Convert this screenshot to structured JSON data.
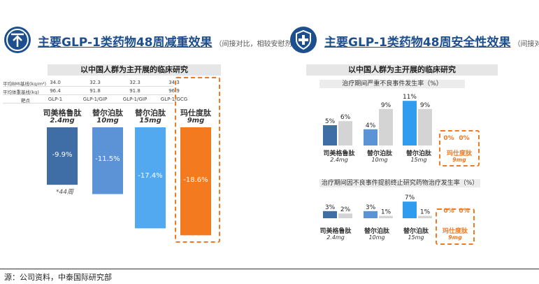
{
  "left": {
    "title": "主要GLP-1类药物48周减重效果",
    "title_note": "（间接对比，相较安慰剂）",
    "icon": "weight-down-arrow-icon",
    "banner": "以中国人群为主开展的临床研究",
    "table": {
      "rows": [
        {
          "label": "平均BMI基线(kg/m²)",
          "values": [
            "34.0",
            "32.3",
            "32.3",
            "34.3"
          ]
        },
        {
          "label": "平均体重基线(kg)",
          "values": [
            "96.4",
            "91.8",
            "91.8",
            "96.9"
          ]
        },
        {
          "label": "靶点",
          "values": [
            "GLP-1",
            "GLP-1/GIP",
            "GLP-1/GIP",
            "GLP-1/GCG"
          ]
        }
      ]
    },
    "footnote": "*44周"
  },
  "right": {
    "title": "主要GLP-1类药物48周安全性效果",
    "title_note": "（间接对比）",
    "icon": "shield-cross-icon",
    "banner": "以中国人群为主开展的临床研究",
    "sub1": "治疗期间严重不良事件发生率（%）",
    "sub2": "治疗期间因不良事件提前终止研究药物治疗发生率（%）"
  },
  "footer": "源：公司资料，中泰国际研究部",
  "colors": {
    "navy": "#1d4f8f",
    "bar_dark": "#3f6ea6",
    "bar_mid": "#5b93d6",
    "bar_light": "#52a9ef",
    "bar_blue": "#2f9cf0",
    "bar_orange": "#f47a20",
    "placebo": "#d4d4d4"
  },
  "chart_data": [
    {
      "type": "bar",
      "title": "",
      "ylabel": "",
      "categories": [
        {
          "name": "司美格鲁肽",
          "dose": "2.4mg"
        },
        {
          "name": "替尔泊肽",
          "dose": "10mg"
        },
        {
          "name": "替尔泊肽",
          "dose": "15mg"
        },
        {
          "name": "玛仕度肽",
          "dose": "9mg"
        }
      ],
      "values": [
        -9.9,
        -11.5,
        -17.4,
        -18.6
      ],
      "labels": [
        "-9.9%",
        "-11.5%",
        "-17.4%",
        "-18.6%"
      ],
      "highlight_index": 3
    },
    {
      "type": "bar",
      "title": "治疗期间严重不良事件发生率（%）",
      "categories": [
        {
          "name": "司美格鲁肽",
          "dose": "2.4mg"
        },
        {
          "name": "替尔泊肽",
          "dose": "10mg"
        },
        {
          "name": "替尔泊肽",
          "dose": "15mg"
        },
        {
          "name": "玛仕度肽",
          "dose": "9mg"
        }
      ],
      "series": [
        {
          "values": [
            5,
            4,
            11,
            0
          ],
          "labels": [
            "5%",
            "4%",
            "11%",
            "0%"
          ]
        },
        {
          "values": [
            6,
            9,
            9,
            0
          ],
          "labels": [
            "6%",
            "9%",
            "9%",
            "0%"
          ]
        }
      ],
      "highlight_index": 3
    },
    {
      "type": "bar",
      "title": "治疗期间因不良事件提前终止研究药物治疗发生率（%）",
      "categories": [
        {
          "name": "司美格鲁肽",
          "dose": "2.4mg"
        },
        {
          "name": "替尔泊肽",
          "dose": "10mg"
        },
        {
          "name": "替尔泊肽",
          "dose": "15mg"
        },
        {
          "name": "玛仕度肽",
          "dose": "9mg"
        }
      ],
      "series": [
        {
          "values": [
            3,
            3,
            7,
            0
          ],
          "labels": [
            "3%",
            "3%",
            "7%",
            "0%"
          ]
        },
        {
          "values": [
            2,
            1,
            1,
            0
          ],
          "labels": [
            "2%",
            "1%",
            "1%",
            "0%"
          ]
        }
      ],
      "highlight_index": 3
    }
  ]
}
